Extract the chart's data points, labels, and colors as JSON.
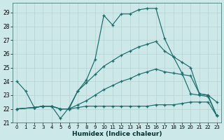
{
  "xlabel": "Humidex (Indice chaleur)",
  "background_color": "#cce8e8",
  "grid_color": "#b8d0d0",
  "line_color": "#1a6b6b",
  "xlim": [
    -0.5,
    23.5
  ],
  "ylim": [
    21.0,
    29.7
  ],
  "yticks": [
    21,
    22,
    23,
    24,
    25,
    26,
    27,
    28,
    29
  ],
  "xticks": [
    0,
    1,
    2,
    3,
    4,
    5,
    6,
    7,
    8,
    9,
    10,
    11,
    12,
    13,
    14,
    15,
    16,
    17,
    18,
    19,
    20,
    21,
    22,
    23
  ],
  "line1_x": [
    0,
    1,
    2,
    3,
    4,
    5,
    6,
    7,
    8,
    9,
    10,
    11,
    12,
    13,
    14,
    15,
    16,
    17,
    18,
    19,
    20,
    21,
    22,
    23
  ],
  "line1_y": [
    24.0,
    23.3,
    22.1,
    22.2,
    22.2,
    21.3,
    22.1,
    23.3,
    24.1,
    25.6,
    28.8,
    28.1,
    28.9,
    28.9,
    29.2,
    29.3,
    29.3,
    27.1,
    25.8,
    24.6,
    23.1,
    23.0,
    22.9,
    21.5
  ],
  "line2_x": [
    0,
    2,
    3,
    4,
    5,
    6,
    7,
    8,
    9,
    10,
    11,
    12,
    13,
    14,
    15,
    16,
    17,
    18,
    19,
    20,
    21,
    22,
    23
  ],
  "line2_y": [
    22.0,
    22.1,
    22.2,
    22.2,
    22.0,
    22.0,
    23.3,
    23.9,
    24.5,
    25.1,
    25.5,
    25.9,
    26.2,
    26.5,
    26.7,
    26.9,
    26.2,
    25.8,
    25.4,
    25.0,
    23.1,
    23.0,
    22.5
  ],
  "line3_x": [
    0,
    2,
    3,
    4,
    5,
    6,
    7,
    8,
    9,
    10,
    11,
    12,
    13,
    14,
    15,
    16,
    17,
    18,
    19,
    20,
    21,
    22,
    23
  ],
  "line3_y": [
    22.0,
    22.1,
    22.2,
    22.2,
    22.0,
    22.0,
    22.3,
    22.6,
    23.0,
    23.4,
    23.7,
    24.0,
    24.2,
    24.5,
    24.7,
    24.9,
    24.7,
    24.6,
    24.5,
    24.4,
    23.1,
    23.0,
    21.5
  ],
  "line4_x": [
    0,
    2,
    3,
    4,
    5,
    6,
    7,
    8,
    9,
    10,
    11,
    12,
    13,
    14,
    15,
    16,
    17,
    18,
    19,
    20,
    21,
    22,
    23
  ],
  "line4_y": [
    22.0,
    22.1,
    22.2,
    22.2,
    22.0,
    22.0,
    22.1,
    22.2,
    22.2,
    22.2,
    22.2,
    22.2,
    22.2,
    22.2,
    22.2,
    22.3,
    22.3,
    22.3,
    22.4,
    22.5,
    22.5,
    22.5,
    21.5
  ]
}
